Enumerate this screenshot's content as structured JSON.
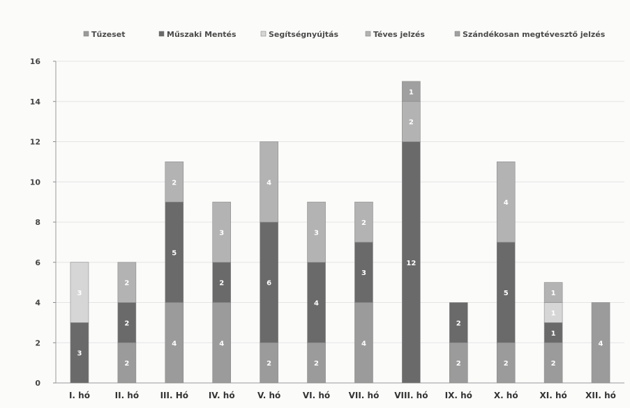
{
  "chart_data": {
    "type": "bar",
    "stacked": true,
    "categories": [
      "I. hó",
      "II. hó",
      "III. Hó",
      "IV. hó",
      "V. hó",
      "VI. hó",
      "VII. hó",
      "VIII. hó",
      "IX. hó",
      "X. hó",
      "XI. hó",
      "XII. hó"
    ],
    "ylim": [
      0,
      16
    ],
    "yticks": [
      0,
      2,
      4,
      6,
      8,
      10,
      12,
      14,
      16
    ],
    "grid": true,
    "legend_position": "top",
    "series": [
      {
        "name": "Tűzeset",
        "color": "#9b9b9b",
        "values": [
          0,
          2,
          4,
          4,
          2,
          2,
          4,
          0,
          2,
          2,
          2,
          4
        ]
      },
      {
        "name": "Műszaki Mentés",
        "color": "#6a6a6a",
        "values": [
          3,
          2,
          5,
          2,
          6,
          4,
          3,
          12,
          2,
          5,
          1,
          0
        ]
      },
      {
        "name": "Segítségnyújtás",
        "color": "#d6d6d6",
        "values": [
          3,
          0,
          0,
          0,
          0,
          0,
          0,
          0,
          0,
          0,
          1,
          0
        ]
      },
      {
        "name": "Téves jelzés",
        "color": "#b3b3b3",
        "values": [
          0,
          2,
          2,
          3,
          4,
          3,
          2,
          2,
          0,
          4,
          1,
          0
        ]
      },
      {
        "name": "Szándékosan megtévesztő jelzés",
        "color": "#a0a0a0",
        "values": [
          0,
          0,
          0,
          0,
          0,
          0,
          0,
          1,
          0,
          0,
          0,
          0
        ]
      }
    ]
  }
}
